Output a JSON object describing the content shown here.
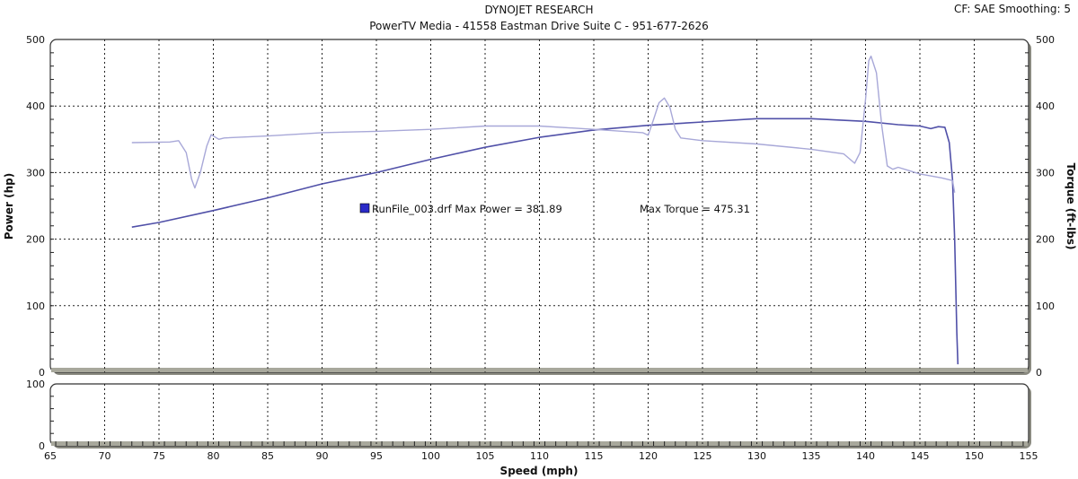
{
  "header": {
    "title": "DYNOJET RESEARCH",
    "subtitle": "PowerTV Media - 41558 Eastman Drive Suite C - 951-677-2626",
    "settings": "CF: SAE  Smoothing: 5"
  },
  "chart_data": [
    {
      "type": "line",
      "title": "DYNOJET RESEARCH",
      "xlabel": "Speed (mph)",
      "ylabel": "Power (hp)",
      "y2label": "Torque (ft-lbs)",
      "xlim": [
        65,
        155
      ],
      "ylim": [
        0,
        500
      ],
      "y2lim": [
        0,
        500
      ],
      "xticks": [
        65,
        70,
        75,
        80,
        85,
        90,
        95,
        100,
        105,
        110,
        115,
        120,
        125,
        130,
        135,
        140,
        145,
        150,
        155
      ],
      "yticks": [
        0,
        100,
        200,
        300,
        400,
        500
      ],
      "grid": true,
      "legend": {
        "placement": "center",
        "label": "RunFile_003.drf Max Power = 381.89",
        "torque_label": "Max Torque = 475.31",
        "color": "#2a2ac8"
      },
      "series": [
        {
          "name": "Power (hp)",
          "color": "#5050a8",
          "x": [
            72.5,
            75,
            80,
            85,
            90,
            95,
            100,
            105,
            110,
            115,
            120,
            125,
            130,
            135,
            140,
            143,
            145,
            146,
            146.7,
            147.3,
            147.7,
            148,
            148.2,
            148.4,
            148.5
          ],
          "y": [
            218,
            225,
            243,
            262,
            283,
            300,
            320,
            338,
            353,
            364,
            371,
            376,
            381,
            381,
            377,
            372,
            370,
            366,
            369,
            368,
            345,
            290,
            200,
            60,
            12
          ]
        },
        {
          "name": "Torque (ft-lbs)",
          "color": "#a8a8d8",
          "x": [
            72.5,
            76,
            76.8,
            77.5,
            78,
            78.3,
            78.8,
            79.4,
            79.8,
            80.5,
            81,
            85,
            90,
            95,
            100,
            105,
            110,
            115,
            119.5,
            120,
            120.5,
            121,
            121.5,
            122,
            122.5,
            123,
            124,
            125,
            130,
            135,
            138,
            139,
            139.5,
            140,
            140.3,
            140.5,
            141,
            141.5,
            142,
            142.5,
            143,
            145,
            147,
            148,
            148.2
          ],
          "y": [
            345,
            346,
            348,
            330,
            290,
            277,
            300,
            340,
            357,
            350,
            352,
            355,
            360,
            362,
            365,
            370,
            370,
            365,
            360,
            356,
            380,
            405,
            412,
            398,
            365,
            352,
            350,
            348,
            343,
            335,
            328,
            314,
            330,
            410,
            468,
            475,
            450,
            370,
            310,
            305,
            308,
            298,
            292,
            288,
            270
          ]
        }
      ]
    },
    {
      "type": "line",
      "title": "",
      "xlabel": "Speed (mph)",
      "ylabel": "",
      "xlim": [
        65,
        155
      ],
      "ylim": [
        0,
        100
      ],
      "yticks": [
        0,
        100
      ],
      "grid": true,
      "series": []
    }
  ]
}
